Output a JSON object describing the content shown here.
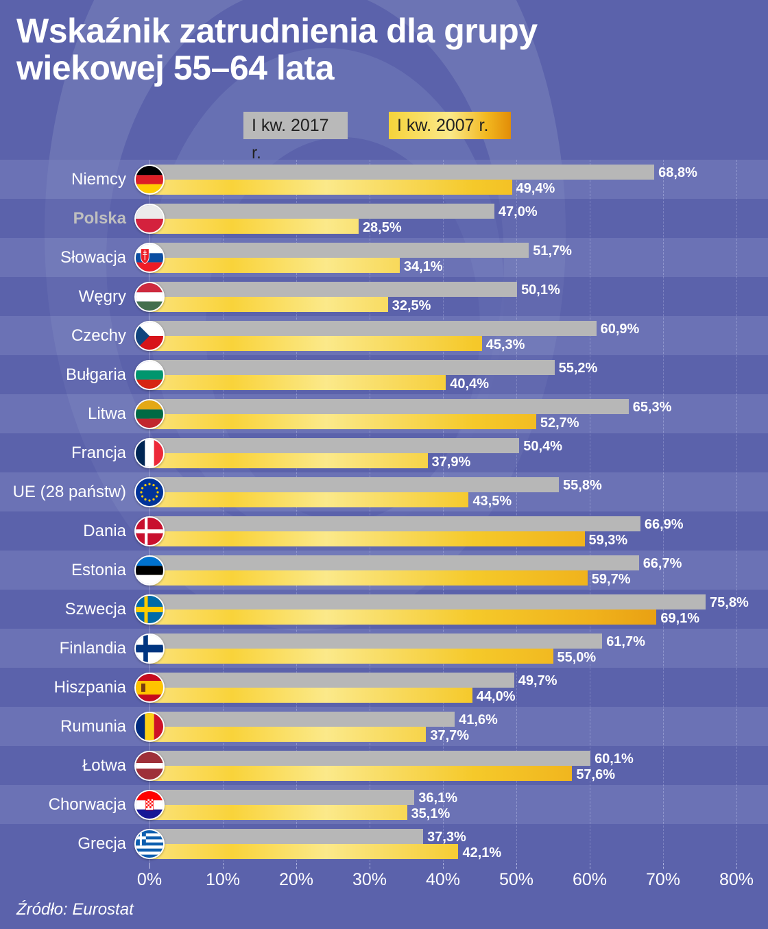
{
  "title_line1": "Wskaźnik zatrudnienia dla grupy",
  "title_line2": "wiekowej 55–64 lata",
  "legend": {
    "series_2017": "I kw. 2017 r.",
    "series_2007": "I kw. 2007 r."
  },
  "axis": {
    "ticks": [
      "0%",
      "10%",
      "20%",
      "30%",
      "40%",
      "50%",
      "60%",
      "70%",
      "80%"
    ]
  },
  "source": "Źródło: Eurostat",
  "colors": {
    "background": "#5b62ab",
    "bar_2017": "#b7b7b7",
    "bar_2007_start": "#fbe27a",
    "bar_2007_end": "#e08a07",
    "highlight_label": "#bfbfbf"
  },
  "rows": [
    {
      "label": "Niemcy",
      "flag": "flag-germany-icon",
      "v2017": "68,8%",
      "v2007": "49,4%"
    },
    {
      "label": "Polska",
      "flag": "flag-poland-icon",
      "v2017": "47,0%",
      "v2007": "28,5%"
    },
    {
      "label": "Słowacja",
      "flag": "flag-slovakia-icon",
      "v2017": "51,7%",
      "v2007": "34,1%"
    },
    {
      "label": "Węgry",
      "flag": "flag-hungary-icon",
      "v2017": "50,1%",
      "v2007": "32,5%"
    },
    {
      "label": "Czechy",
      "flag": "flag-czechia-icon",
      "v2017": "60,9%",
      "v2007": "45,3%"
    },
    {
      "label": "Bułgaria",
      "flag": "flag-bulgaria-icon",
      "v2017": "55,2%",
      "v2007": "40,4%"
    },
    {
      "label": "Litwa",
      "flag": "flag-lithuania-icon",
      "v2017": "65,3%",
      "v2007": "52,7%"
    },
    {
      "label": "Francja",
      "flag": "flag-france-icon",
      "v2017": "50,4%",
      "v2007": "37,9%"
    },
    {
      "label": "UE (28 państw)",
      "flag": "flag-eu-icon",
      "v2017": "55,8%",
      "v2007": "43,5%"
    },
    {
      "label": "Dania",
      "flag": "flag-denmark-icon",
      "v2017": "66,9%",
      "v2007": "59,3%"
    },
    {
      "label": "Estonia",
      "flag": "flag-estonia-icon",
      "v2017": "66,7%",
      "v2007": "59,7%"
    },
    {
      "label": "Szwecja",
      "flag": "flag-sweden-icon",
      "v2017": "75,8%",
      "v2007": "69,1%"
    },
    {
      "label": "Finlandia",
      "flag": "flag-finland-icon",
      "v2017": "61,7%",
      "v2007": "55,0%"
    },
    {
      "label": "Hiszpania",
      "flag": "flag-spain-icon",
      "v2017": "49,7%",
      "v2007": "44,0%"
    },
    {
      "label": "Rumunia",
      "flag": "flag-romania-icon",
      "v2017": "41,6%",
      "v2007": "37,7%"
    },
    {
      "label": "Łotwa",
      "flag": "flag-latvia-icon",
      "v2017": "60,1%",
      "v2007": "57,6%"
    },
    {
      "label": "Chorwacja",
      "flag": "flag-croatia-icon",
      "v2017": "36,1%",
      "v2007": "35,1%"
    },
    {
      "label": "Grecja",
      "flag": "flag-greece-icon",
      "v2017": "37,3%",
      "v2007": "42,1%"
    }
  ],
  "chart_data": {
    "type": "bar",
    "orientation": "horizontal",
    "title": "Wskaźnik zatrudnienia dla grupy wiekowej 55–64 lata",
    "xlabel": "",
    "ylabel": "",
    "xlim": [
      0,
      80
    ],
    "x_ticks": [
      "0%",
      "10%",
      "20%",
      "30%",
      "40%",
      "50%",
      "60%",
      "70%",
      "80%"
    ],
    "grid": true,
    "legend_position": "top",
    "categories": [
      "Niemcy",
      "Polska",
      "Słowacja",
      "Węgry",
      "Czechy",
      "Bułgaria",
      "Litwa",
      "Francja",
      "UE (28 państw)",
      "Dania",
      "Estonia",
      "Szwecja",
      "Finlandia",
      "Hiszpania",
      "Rumunia",
      "Łotwa",
      "Chorwacja",
      "Grecja"
    ],
    "series": [
      {
        "name": "I kw. 2017 r.",
        "values": [
          68.8,
          47.0,
          51.7,
          50.1,
          60.9,
          55.2,
          65.3,
          50.4,
          55.8,
          66.9,
          66.7,
          75.8,
          61.7,
          49.7,
          41.6,
          60.1,
          36.1,
          37.3
        ]
      },
      {
        "name": "I kw. 2007 r.",
        "values": [
          49.4,
          28.5,
          34.1,
          32.5,
          45.3,
          40.4,
          52.7,
          37.9,
          43.5,
          59.3,
          59.7,
          69.1,
          55.0,
          44.0,
          37.7,
          57.6,
          35.1,
          42.1
        ]
      }
    ],
    "annotations": [
      "Źródło: Eurostat"
    ]
  }
}
